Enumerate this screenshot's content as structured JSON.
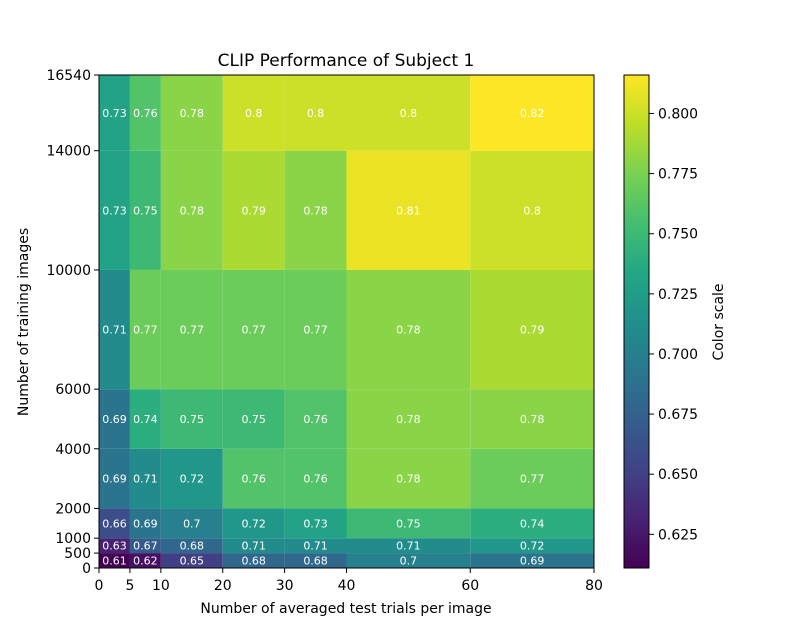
{
  "chart_data": {
    "type": "heatmap",
    "title": "CLIP Performance of Subject 1",
    "xlabel": "Number of averaged test trials per image",
    "ylabel": "Number of training images",
    "x_edges": [
      0,
      5,
      10,
      20,
      30,
      40,
      60,
      80
    ],
    "y_edges": [
      0,
      500,
      1000,
      2000,
      4000,
      6000,
      10000,
      14000,
      16540
    ],
    "x_ticks": [
      0,
      5,
      10,
      20,
      30,
      40,
      60,
      80
    ],
    "y_ticks": [
      0,
      500,
      1000,
      2000,
      4000,
      6000,
      10000,
      14000,
      16540
    ],
    "values": [
      [
        0.61,
        0.62,
        0.65,
        0.68,
        0.68,
        0.7,
        0.69
      ],
      [
        0.63,
        0.67,
        0.68,
        0.71,
        0.71,
        0.71,
        0.72
      ],
      [
        0.66,
        0.69,
        0.7,
        0.72,
        0.73,
        0.75,
        0.74
      ],
      [
        0.69,
        0.71,
        0.72,
        0.76,
        0.76,
        0.78,
        0.77
      ],
      [
        0.69,
        0.74,
        0.75,
        0.75,
        0.76,
        0.78,
        0.78
      ],
      [
        0.71,
        0.77,
        0.77,
        0.77,
        0.77,
        0.78,
        0.79
      ],
      [
        0.73,
        0.75,
        0.78,
        0.79,
        0.78,
        0.81,
        0.8
      ],
      [
        0.73,
        0.76,
        0.78,
        0.8,
        0.8,
        0.8,
        0.82
      ]
    ],
    "colormap": "viridis",
    "colorbar": {
      "label": "Color scale",
      "range": [
        0.611,
        0.816
      ],
      "ticks": [
        0.625,
        0.65,
        0.675,
        0.7,
        0.725,
        0.75,
        0.775,
        0.8
      ],
      "tick_labels": [
        "0.625",
        "0.650",
        "0.675",
        "0.700",
        "0.725",
        "0.750",
        "0.775",
        "0.800"
      ]
    }
  }
}
